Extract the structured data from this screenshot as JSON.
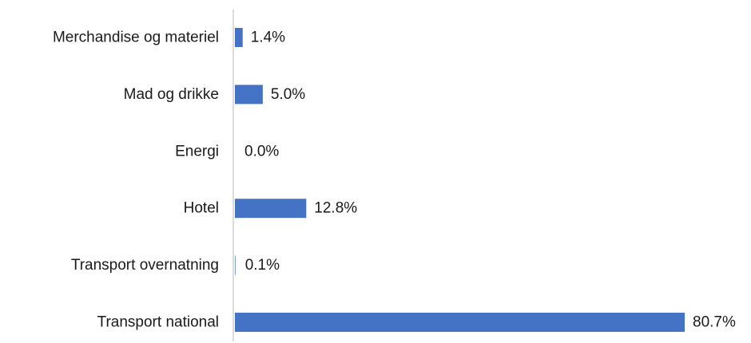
{
  "chart_data": {
    "type": "bar",
    "orientation": "horizontal",
    "categories": [
      "Merchandise og materiel",
      "Mad og drikke",
      "Energi",
      "Hotel",
      "Transport overnatning",
      "Transport national"
    ],
    "values": [
      1.4,
      5.0,
      0.0,
      12.8,
      0.1,
      80.7
    ],
    "value_labels": [
      "1.4%",
      "5.0%",
      "0.0%",
      "12.8%",
      "0.1%",
      "80.7%"
    ],
    "unit": "%",
    "xlim": [
      0,
      80.7
    ],
    "grid": false,
    "legend": "none",
    "title": "",
    "xlabel": "",
    "ylabel": "",
    "bar_color": "#4472c4",
    "axis_color": "#d0d0d0"
  }
}
